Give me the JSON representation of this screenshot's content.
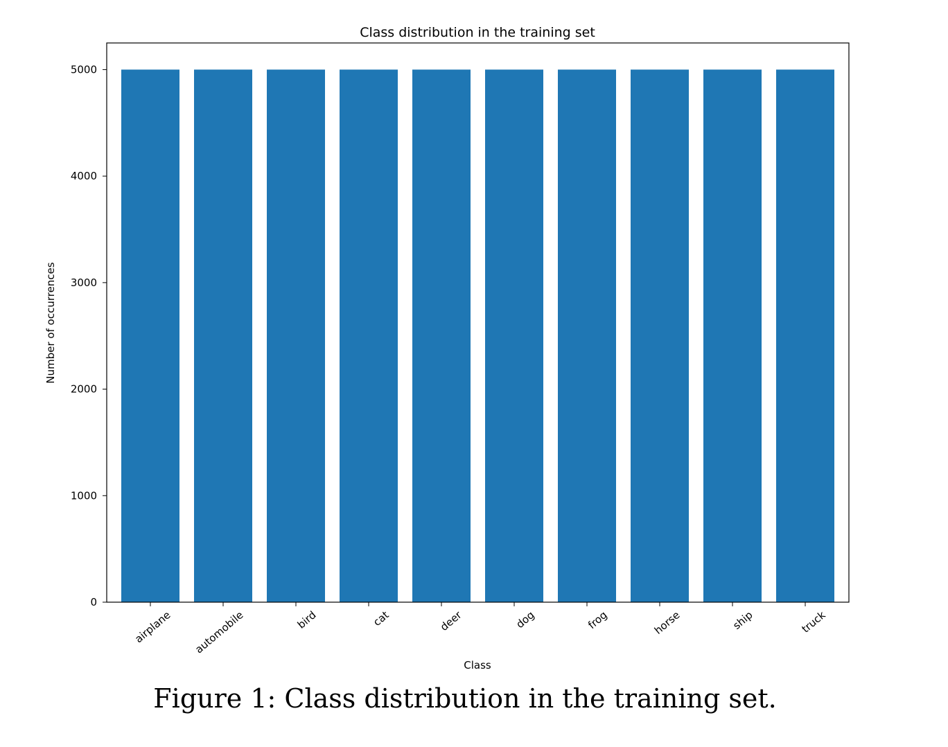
{
  "chart_data": {
    "type": "bar",
    "title": "Class distribution in the training set",
    "xlabel": "Class",
    "ylabel": "Number of occurrences",
    "categories": [
      "airplane",
      "automobile",
      "bird",
      "cat",
      "deer",
      "dog",
      "frog",
      "horse",
      "ship",
      "truck"
    ],
    "values": [
      5000,
      5000,
      5000,
      5000,
      5000,
      5000,
      5000,
      5000,
      5000,
      5000
    ],
    "ylim": [
      0,
      5250
    ],
    "yticks": [
      0,
      1000,
      2000,
      3000,
      4000,
      5000
    ],
    "bar_color": "#1f77b4",
    "grid": false,
    "legend": "none"
  },
  "caption": {
    "text": "Figure 1: Class distribution in the training set."
  }
}
